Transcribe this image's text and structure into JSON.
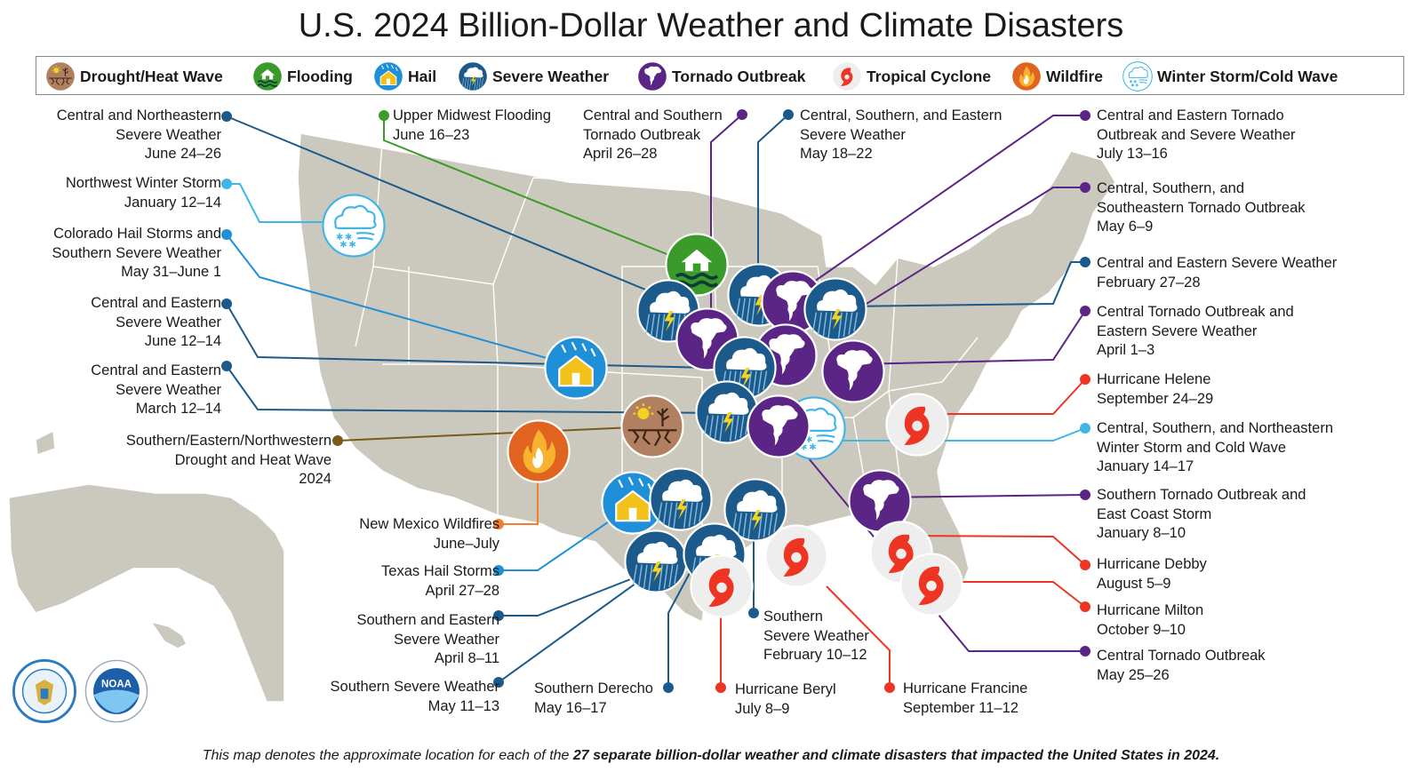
{
  "title": "U.S. 2024 Billion-Dollar Weather and Climate Disasters",
  "legend": [
    {
      "type": "drought",
      "label": "Drought/Heat Wave",
      "color": "#b08060"
    },
    {
      "type": "flood",
      "label": "Flooding",
      "color": "#3a9a2a"
    },
    {
      "type": "hail",
      "label": "Hail",
      "color": "#1f90d8"
    },
    {
      "type": "severe",
      "label": "Severe Weather",
      "color": "#1b5a8a"
    },
    {
      "type": "tornado",
      "label": "Tornado Outbreak",
      "color": "#5a2585"
    },
    {
      "type": "tropical",
      "label": "Tropical Cyclone",
      "color": "#ee3524"
    },
    {
      "type": "wildfire",
      "label": "Wildfire",
      "color": "#e06420"
    },
    {
      "type": "winter",
      "label": "Winter Storm/Cold Wave",
      "color": "#3fb6e6"
    }
  ],
  "events": [
    {
      "name": [
        "Central and Northeastern",
        "Severe Weather"
      ],
      "date": "June 24–26",
      "type": "severe"
    },
    {
      "name": [
        "Upper Midwest Flooding"
      ],
      "date": "June 16–23",
      "type": "flood"
    },
    {
      "name": [
        "Central and Southern",
        "Tornado Outbreak"
      ],
      "date": "April 26–28",
      "type": "tornado"
    },
    {
      "name": [
        "Central, Southern, and Eastern",
        "Severe Weather"
      ],
      "date": "May 18–22",
      "type": "severe"
    },
    {
      "name": [
        "Central and Eastern Tornado",
        "Outbreak and Severe Weather"
      ],
      "date": "July 13–16",
      "type": "tornado"
    },
    {
      "name": [
        "Northwest Winter Storm"
      ],
      "date": "January 12–14",
      "type": "winter"
    },
    {
      "name": [
        "Central, Southern, and",
        "Southeastern Tornado Outbreak"
      ],
      "date": "May 6–9",
      "type": "tornado"
    },
    {
      "name": [
        "Colorado Hail Storms and",
        "Southern Severe Weather"
      ],
      "date": "May 31–June 1",
      "type": "hail"
    },
    {
      "name": [
        "Central and Eastern Severe Weather"
      ],
      "date": "February 27–28",
      "type": "severe"
    },
    {
      "name": [
        "Central and Eastern",
        "Severe Weather"
      ],
      "date": "June 12–14",
      "type": "severe"
    },
    {
      "name": [
        "Central Tornado Outbreak and",
        "Eastern Severe Weather"
      ],
      "date": "April 1–3",
      "type": "tornado"
    },
    {
      "name": [
        "Central and Eastern",
        "Severe Weather"
      ],
      "date": "March 12–14",
      "type": "severe"
    },
    {
      "name": [
        "Hurricane Helene"
      ],
      "date": "September 24–29",
      "type": "tropical"
    },
    {
      "name": [
        "Southern/Eastern/Northwestern",
        "Drought and Heat Wave"
      ],
      "date": "2024",
      "type": "drought"
    },
    {
      "name": [
        "Central, Southern, and Northeastern",
        "Winter Storm and Cold Wave"
      ],
      "date": "January 14–17",
      "type": "winter"
    },
    {
      "name": [
        "Southern Tornado Outbreak and",
        "East Coast Storm"
      ],
      "date": "January 8–10",
      "type": "tornado"
    },
    {
      "name": [
        "New Mexico Wildfires"
      ],
      "date": "June–July",
      "type": "wildfire"
    },
    {
      "name": [
        "Hurricane Debby"
      ],
      "date": "August 5–9",
      "type": "tropical"
    },
    {
      "name": [
        "Texas Hail Storms"
      ],
      "date": "April 27–28",
      "type": "hail"
    },
    {
      "name": [
        "Southern",
        "Severe Weather"
      ],
      "date": "February 10–12",
      "type": "severe"
    },
    {
      "name": [
        "Hurricane Milton"
      ],
      "date": "October 9–10",
      "type": "tropical"
    },
    {
      "name": [
        "Southern and Eastern",
        "Severe Weather"
      ],
      "date": "April 8–11",
      "type": "severe"
    },
    {
      "name": [
        "Central Tornado Outbreak"
      ],
      "date": "May 25–26",
      "type": "tornado"
    },
    {
      "name": [
        "Southern Severe Weather"
      ],
      "date": "May 11–13",
      "type": "severe"
    },
    {
      "name": [
        "Southern Derecho"
      ],
      "date": "May 16–17",
      "type": "severe"
    },
    {
      "name": [
        "Hurricane Beryl"
      ],
      "date": "July 8–9",
      "type": "tropical"
    },
    {
      "name": [
        "Hurricane Francine"
      ],
      "date": "September 11–12",
      "type": "tropical"
    }
  ],
  "caption": {
    "before": "This map denotes the approximate location for each of the ",
    "bold": "27 separate billion-dollar weather and climate disasters that impacted the United States in 2024."
  },
  "seals": {
    "commerce": "DEPARTMENT OF COMMERCE · UNITED STATES OF AMERICA",
    "noaa": "NOAA"
  },
  "colors": {
    "land": "#cbc8bd",
    "line_severe": "#1b5a8a",
    "line_flood": "#3a9a2a",
    "line_tornado": "#5a2585",
    "line_tropical": "#ee3524",
    "line_winter": "#3fb6e6",
    "line_hail": "#1f90d8",
    "line_drought": "#7a5a1a",
    "line_wildfire": "#f08030"
  }
}
